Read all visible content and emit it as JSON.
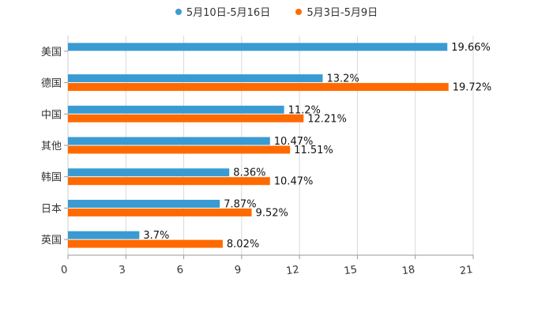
{
  "chart_data": {
    "type": "bar",
    "orientation": "horizontal",
    "categories": [
      "美国",
      "德国",
      "中国",
      "其他",
      "韩国",
      "日本",
      "英国"
    ],
    "series": [
      {
        "name": "5月10日-5月16日",
        "color": "#3a9bd2",
        "values": [
          19.66,
          13.2,
          11.2,
          10.47,
          8.36,
          7.87,
          3.7
        ],
        "labels": [
          "19.66%",
          "13.2%",
          "11.2%",
          "10.47%",
          "8.36%",
          "7.87%",
          "3.7%"
        ]
      },
      {
        "name": "5月3日-5月9日",
        "color": "#ff6a00",
        "values": [
          null,
          19.72,
          12.21,
          11.51,
          10.47,
          9.52,
          8.02
        ],
        "labels": [
          "",
          "19.72%",
          "12.21%",
          "11.51%",
          "10.47%",
          "9.52%",
          "8.02%"
        ]
      }
    ],
    "xlim": [
      0,
      21
    ],
    "xticks": [
      "0",
      "3",
      "6",
      "9",
      "12",
      "15",
      "18",
      "21"
    ],
    "grid": true,
    "legend": "top-center"
  }
}
